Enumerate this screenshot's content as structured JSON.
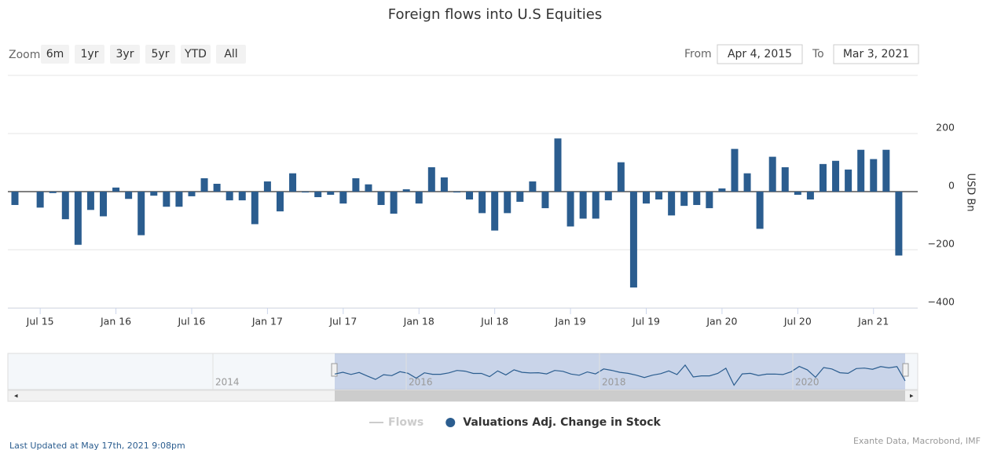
{
  "chart_data": {
    "type": "bar",
    "title": "Foreign flows into U.S Equities",
    "zoom_label": "Zoom",
    "zoom_buttons": [
      "6m",
      "1yr",
      "3yr",
      "5yr",
      "YTD",
      "All"
    ],
    "from_label": "From",
    "from_date": "Apr 4, 2015",
    "to_label": "To",
    "to_date": "Mar 3, 2021",
    "y_axis_label": "USD Bn",
    "categories": [
      null,
      null,
      "Jul 15",
      null,
      null,
      null,
      null,
      null,
      "Jan 16",
      null,
      null,
      null,
      null,
      null,
      "Jul 16",
      null,
      null,
      null,
      null,
      null,
      "Jan 17",
      null,
      null,
      null,
      null,
      null,
      "Jul 17",
      null,
      null,
      null,
      null,
      null,
      "Jan 18",
      null,
      null,
      null,
      null,
      null,
      "Jul 18",
      null,
      null,
      null,
      null,
      null,
      "Jan 19",
      null,
      null,
      null,
      null,
      null,
      "Jul 19",
      null,
      null,
      null,
      null,
      null,
      "Jan 20",
      null,
      null,
      null,
      null,
      null,
      "Jul 20",
      null,
      null,
      null,
      null,
      null,
      "Jan 21",
      null,
      null
    ],
    "series": [
      {
        "name": "Flows",
        "color": "#cccccc",
        "visible": false
      },
      {
        "name": "Valuations Adj. Change in Stock",
        "color": "#2b5d8f",
        "visible": true,
        "values": [
          -46,
          0,
          -55,
          -5,
          -95,
          -183,
          -63,
          -85,
          14,
          -25,
          -150,
          -14,
          -52,
          -52,
          -16,
          46,
          27,
          -30,
          -30,
          -112,
          35,
          -68,
          63,
          -3,
          -19,
          -11,
          -41,
          46,
          25,
          -46,
          -76,
          8,
          -41,
          84,
          49,
          -3,
          -27,
          -74,
          -134,
          -74,
          -35,
          35,
          -57,
          183,
          -120,
          -93,
          -93,
          -30,
          101,
          -330,
          -41,
          -27,
          -82,
          -49,
          -46,
          -57,
          11,
          147,
          63,
          -128,
          120,
          84,
          -11,
          -27,
          95,
          106,
          76,
          144,
          112,
          144,
          -220
        ]
      }
    ],
    "ylim": [
      -400,
      400
    ],
    "yticks": [
      200,
      0,
      {
        "value": -200,
        "label": "−200"
      },
      {
        "value": -400,
        "label": "−400"
      }
    ],
    "grid": true,
    "navigator_labels": [
      "2014",
      "2016",
      "2018",
      "2020"
    ],
    "footer": "Last Updated at May 17th, 2021 9:08pm",
    "credits": "Exante Data, Macrobond, IMF"
  }
}
